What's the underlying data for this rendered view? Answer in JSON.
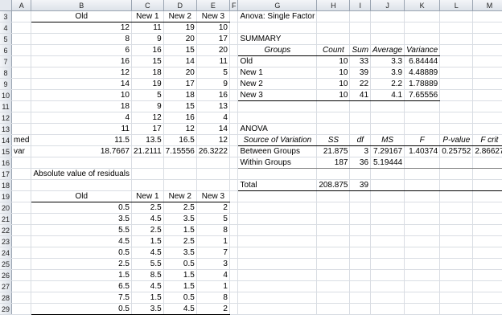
{
  "columns": [
    "",
    "A",
    "B",
    "C",
    "D",
    "E",
    "F",
    "G",
    "H",
    "I",
    "J",
    "K",
    "L",
    "M"
  ],
  "rows": [
    {
      "n": "3",
      "c": [
        "",
        "Old",
        "New 1",
        "New 2",
        "New 3",
        "",
        "Anova: Single Factor",
        "",
        "",
        "",
        "",
        "",
        ""
      ]
    },
    {
      "n": "4",
      "c": [
        "",
        "12",
        "11",
        "19",
        "10",
        "",
        "",
        "",
        "",
        "",
        "",
        "",
        ""
      ]
    },
    {
      "n": "5",
      "c": [
        "",
        "8",
        "9",
        "20",
        "17",
        "",
        "SUMMARY",
        "",
        "",
        "",
        "",
        "",
        ""
      ]
    },
    {
      "n": "6",
      "c": [
        "",
        "6",
        "16",
        "15",
        "20",
        "",
        "Groups",
        "Count",
        "Sum",
        "Average",
        "Variance",
        "",
        ""
      ]
    },
    {
      "n": "7",
      "c": [
        "",
        "16",
        "15",
        "14",
        "11",
        "",
        "Old",
        "10",
        "33",
        "3.3",
        "6.84444",
        "",
        ""
      ]
    },
    {
      "n": "8",
      "c": [
        "",
        "12",
        "18",
        "20",
        "5",
        "",
        "New 1",
        "10",
        "39",
        "3.9",
        "4.48889",
        "",
        ""
      ]
    },
    {
      "n": "9",
      "c": [
        "",
        "14",
        "19",
        "17",
        "9",
        "",
        "New 2",
        "10",
        "22",
        "2.2",
        "1.78889",
        "",
        ""
      ]
    },
    {
      "n": "10",
      "c": [
        "",
        "10",
        "5",
        "18",
        "16",
        "",
        "New 3",
        "10",
        "41",
        "4.1",
        "7.65556",
        "",
        ""
      ]
    },
    {
      "n": "11",
      "c": [
        "",
        "18",
        "9",
        "15",
        "13",
        "",
        "",
        "",
        "",
        "",
        "",
        "",
        ""
      ]
    },
    {
      "n": "12",
      "c": [
        "",
        "4",
        "12",
        "16",
        "4",
        "",
        "",
        "",
        "",
        "",
        "",
        "",
        ""
      ]
    },
    {
      "n": "13",
      "c": [
        "",
        "11",
        "17",
        "12",
        "14",
        "",
        "ANOVA",
        "",
        "",
        "",
        "",
        "",
        ""
      ]
    },
    {
      "n": "14",
      "c": [
        "med",
        "11.5",
        "13.5",
        "16.5",
        "12",
        "",
        "Source of Variation",
        "SS",
        "df",
        "MS",
        "F",
        "P-value",
        "F crit"
      ]
    },
    {
      "n": "15",
      "c": [
        "var",
        "18.7667",
        "21.2111",
        "7.15556",
        "26.3222",
        "",
        "Between Groups",
        "21.875",
        "3",
        "7.29167",
        "1.40374",
        "0.25752",
        "2.86627"
      ]
    },
    {
      "n": "16",
      "c": [
        "",
        "",
        "",
        "",
        "",
        "",
        "Within Groups",
        "187",
        "36",
        "5.19444",
        "",
        "",
        ""
      ]
    },
    {
      "n": "17",
      "c": [
        "",
        "Absolute value of residuals",
        "",
        "",
        "",
        "",
        "",
        "",
        "",
        "",
        "",
        "",
        ""
      ]
    },
    {
      "n": "18",
      "c": [
        "",
        "",
        "",
        "",
        "",
        "",
        "Total",
        "208.875",
        "39",
        "",
        "",
        "",
        ""
      ]
    },
    {
      "n": "19",
      "c": [
        "",
        "Old",
        "New 1",
        "New 2",
        "New 3",
        "",
        "",
        "",
        "",
        "",
        "",
        "",
        ""
      ]
    },
    {
      "n": "20",
      "c": [
        "",
        "0.5",
        "2.5",
        "2.5",
        "2",
        "",
        "",
        "",
        "",
        "",
        "",
        "",
        ""
      ]
    },
    {
      "n": "21",
      "c": [
        "",
        "3.5",
        "4.5",
        "3.5",
        "5",
        "",
        "",
        "",
        "",
        "",
        "",
        "",
        ""
      ]
    },
    {
      "n": "22",
      "c": [
        "",
        "5.5",
        "2.5",
        "1.5",
        "8",
        "",
        "",
        "",
        "",
        "",
        "",
        "",
        ""
      ]
    },
    {
      "n": "23",
      "c": [
        "",
        "4.5",
        "1.5",
        "2.5",
        "1",
        "",
        "",
        "",
        "",
        "",
        "",
        "",
        ""
      ]
    },
    {
      "n": "24",
      "c": [
        "",
        "0.5",
        "4.5",
        "3.5",
        "7",
        "",
        "",
        "",
        "",
        "",
        "",
        "",
        ""
      ]
    },
    {
      "n": "25",
      "c": [
        "",
        "2.5",
        "5.5",
        "0.5",
        "3",
        "",
        "",
        "",
        "",
        "",
        "",
        "",
        ""
      ]
    },
    {
      "n": "26",
      "c": [
        "",
        "1.5",
        "8.5",
        "1.5",
        "4",
        "",
        "",
        "",
        "",
        "",
        "",
        "",
        ""
      ]
    },
    {
      "n": "27",
      "c": [
        "",
        "6.5",
        "4.5",
        "1.5",
        "1",
        "",
        "",
        "",
        "",
        "",
        "",
        "",
        ""
      ]
    },
    {
      "n": "28",
      "c": [
        "",
        "7.5",
        "1.5",
        "0.5",
        "8",
        "",
        "",
        "",
        "",
        "",
        "",
        "",
        ""
      ]
    },
    {
      "n": "29",
      "c": [
        "",
        "0.5",
        "3.5",
        "4.5",
        "2",
        "",
        "",
        "",
        "",
        "",
        "",
        "",
        ""
      ]
    }
  ]
}
